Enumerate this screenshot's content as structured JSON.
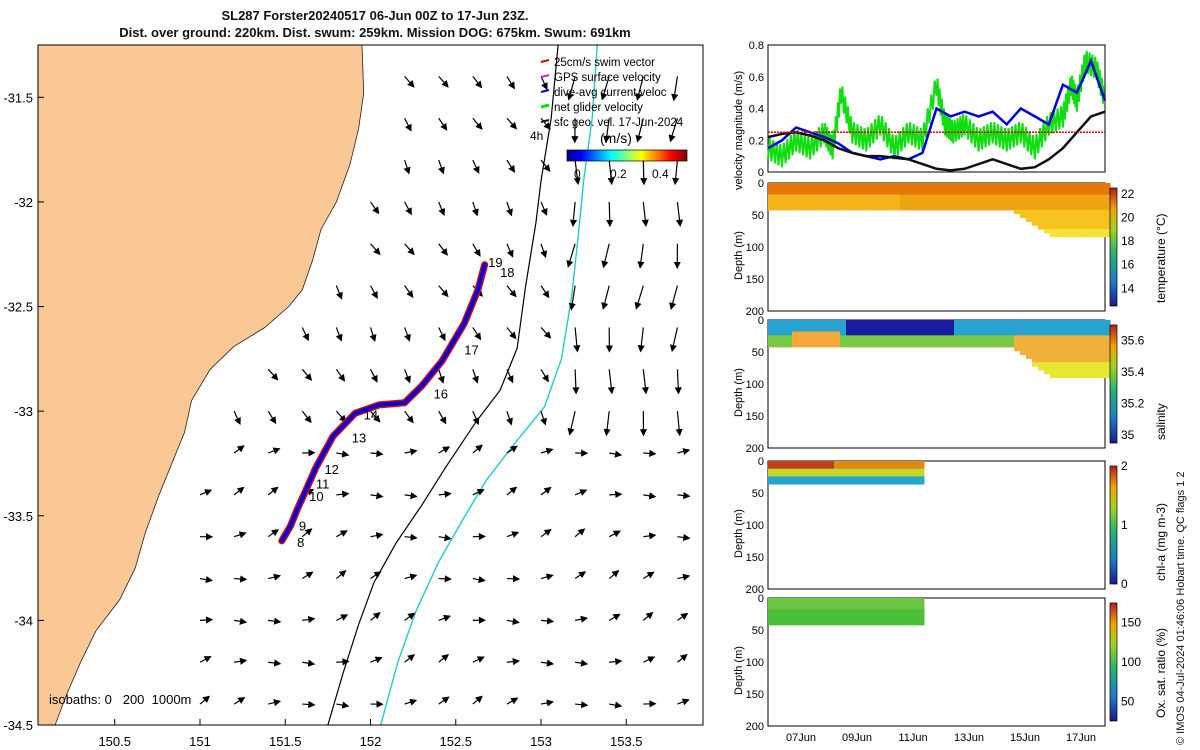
{
  "header": {
    "title_line1": "SL287 Forster20240517 06-Jun 00Z to 17-Jun 23Z.",
    "title_line2": "Dist. over ground: 220km. Dist. swum: 259km. Mission DOG: 675km. Swum: 691km"
  },
  "side_note": "© IMOS 04-Jul-2024 01:46:06 Hobart time. QC flags 1 2",
  "colors": {
    "land": "#f9c894",
    "swim": "#dd0000",
    "gps": "#cc22cc",
    "dive": "#0000dd",
    "net": "#11dd11",
    "sfc": "#111111",
    "isobath_200": "#000000",
    "isobath_1000": "#22cccc"
  },
  "chart_data": [
    {
      "type": "map",
      "x": {
        "ticks": [
          150.5,
          151,
          151.5,
          152,
          152.5,
          153,
          153.5
        ],
        "range": [
          150.05,
          153.95
        ]
      },
      "y": {
        "ticks": [
          -31.5,
          -32,
          -32.5,
          -33,
          -33.5,
          -34,
          -34.5
        ],
        "range": [
          -34.5,
          -31.25
        ]
      },
      "legend": {
        "placement": "top-right",
        "entries": [
          "25cm/s swim vector",
          "GPS surface velocity",
          "dive-avg current veloc",
          "net glider velocity",
          "sfc geo. vel. 17-Jun-2024"
        ]
      },
      "colorbar": {
        "label": "(m/s)",
        "ticks": [
          "0",
          "0.2",
          "0.4"
        ],
        "range": [
          -0.05,
          0.5
        ]
      },
      "annotations": {
        "time_marker": "4h",
        "isobath_label": "isobaths: 0   200  1000m"
      },
      "track_labels": [
        {
          "label": "8",
          "lon": 151.57,
          "lat": -33.65
        },
        {
          "label": "9",
          "lon": 151.58,
          "lat": -33.57
        },
        {
          "label": "10",
          "lon": 151.64,
          "lat": -33.43
        },
        {
          "label": "11",
          "lon": 151.68,
          "lat": -33.37
        },
        {
          "label": "12",
          "lon": 151.73,
          "lat": -33.3
        },
        {
          "label": "13",
          "lon": 151.89,
          "lat": -33.15
        },
        {
          "label": "14",
          "lon": 151.96,
          "lat": -33.04
        },
        {
          "label": "16",
          "lon": 152.37,
          "lat": -32.94
        },
        {
          "label": "17",
          "lon": 152.55,
          "lat": -32.73
        },
        {
          "label": "18",
          "lon": 152.76,
          "lat": -32.36
        },
        {
          "label": "19",
          "lon": 152.69,
          "lat": -32.31
        }
      ],
      "glider_track": [
        [
          151.48,
          -33.62
        ],
        [
          151.53,
          -33.55
        ],
        [
          151.57,
          -33.47
        ],
        [
          151.62,
          -33.38
        ],
        [
          151.68,
          -33.27
        ],
        [
          151.78,
          -33.12
        ],
        [
          151.91,
          -33.01
        ],
        [
          152.05,
          -32.97
        ],
        [
          152.2,
          -32.96
        ],
        [
          152.3,
          -32.88
        ],
        [
          152.42,
          -32.76
        ],
        [
          152.55,
          -32.58
        ],
        [
          152.63,
          -32.42
        ],
        [
          152.67,
          -32.3
        ]
      ],
      "coastline": [
        [
          151.95,
          -31.25
        ],
        [
          151.96,
          -31.48
        ],
        [
          151.93,
          -31.65
        ],
        [
          151.88,
          -31.82
        ],
        [
          151.8,
          -32.0
        ],
        [
          151.71,
          -32.13
        ],
        [
          151.66,
          -32.28
        ],
        [
          151.6,
          -32.42
        ],
        [
          151.52,
          -32.5
        ],
        [
          151.38,
          -32.6
        ],
        [
          151.2,
          -32.69
        ],
        [
          151.06,
          -32.8
        ],
        [
          150.95,
          -32.95
        ],
        [
          150.91,
          -33.1
        ],
        [
          150.82,
          -33.28
        ],
        [
          150.76,
          -33.4
        ],
        [
          150.68,
          -33.58
        ],
        [
          150.62,
          -33.75
        ],
        [
          150.53,
          -33.9
        ],
        [
          150.39,
          -34.05
        ],
        [
          150.3,
          -34.2
        ],
        [
          150.22,
          -34.35
        ],
        [
          150.15,
          -34.5
        ]
      ],
      "isobath_200": [
        [
          153.1,
          -31.25
        ],
        [
          153.06,
          -31.6
        ],
        [
          153.0,
          -31.9
        ],
        [
          152.97,
          -32.1
        ],
        [
          152.91,
          -32.4
        ],
        [
          152.86,
          -32.7
        ],
        [
          152.76,
          -32.9
        ],
        [
          152.62,
          -33.05
        ],
        [
          152.44,
          -33.27
        ],
        [
          152.3,
          -33.45
        ],
        [
          152.15,
          -33.63
        ],
        [
          152.02,
          -33.82
        ],
        [
          151.93,
          -34.02
        ],
        [
          151.84,
          -34.25
        ],
        [
          151.75,
          -34.5
        ]
      ],
      "isobath_1000": [
        [
          153.33,
          -31.25
        ],
        [
          153.3,
          -31.6
        ],
        [
          153.25,
          -31.9
        ],
        [
          153.22,
          -32.15
        ],
        [
          153.18,
          -32.45
        ],
        [
          153.12,
          -32.75
        ],
        [
          153.02,
          -32.98
        ],
        [
          152.85,
          -33.15
        ],
        [
          152.68,
          -33.33
        ],
        [
          152.54,
          -33.52
        ],
        [
          152.4,
          -33.72
        ],
        [
          152.27,
          -33.95
        ],
        [
          152.16,
          -34.2
        ],
        [
          152.06,
          -34.5
        ]
      ],
      "velocity_field_grid": {
        "lon_start": 151.0,
        "lon_step": 0.2,
        "lat_start": -34.5,
        "lat_step": 0.2
      }
    },
    {
      "type": "line",
      "ylabel": "velocity magnitude (m/s)",
      "ylim": [
        0,
        0.8
      ],
      "yticks": [
        0,
        0.2,
        0.4,
        0.6,
        0.8
      ],
      "series": [
        {
          "color": "#11dd11",
          "x": [
            0,
            0.5,
            1,
            1.5,
            2,
            2.3,
            2.6,
            3,
            3.5,
            4,
            4.5,
            5,
            5.5,
            6,
            6.3,
            6.6,
            7,
            7.5,
            8,
            8.5,
            9,
            9.5,
            10,
            10.5,
            10.8,
            11,
            11.3,
            11.7,
            12
          ],
          "values": [
            0.15,
            0.1,
            0.2,
            0.15,
            0.25,
            0.15,
            0.5,
            0.25,
            0.2,
            0.3,
            0.15,
            0.25,
            0.2,
            0.55,
            0.3,
            0.25,
            0.3,
            0.2,
            0.25,
            0.2,
            0.25,
            0.15,
            0.3,
            0.35,
            0.55,
            0.45,
            0.7,
            0.65,
            0.45
          ]
        },
        {
          "color": "#0000dd",
          "x": [
            0,
            0.5,
            1,
            1.5,
            2,
            2.5,
            3,
            3.5,
            4,
            4.5,
            5,
            5.5,
            6,
            6.5,
            7,
            7.5,
            8,
            8.5,
            9,
            9.5,
            10,
            10.5,
            11,
            11.5,
            12
          ],
          "values": [
            0.15,
            0.2,
            0.28,
            0.25,
            0.22,
            0.18,
            0.12,
            0.1,
            0.08,
            0.1,
            0.08,
            0.12,
            0.4,
            0.35,
            0.38,
            0.35,
            0.38,
            0.3,
            0.4,
            0.35,
            0.3,
            0.55,
            0.5,
            0.7,
            0.45
          ]
        },
        {
          "color": "#111111",
          "x": [
            0,
            0.5,
            1,
            1.5,
            2,
            2.5,
            3,
            3.5,
            4,
            4.5,
            5,
            5.5,
            6,
            6.5,
            7,
            7.5,
            8,
            8.5,
            9,
            9.5,
            10,
            10.5,
            11,
            11.5,
            12
          ],
          "values": [
            0.22,
            0.24,
            0.25,
            0.23,
            0.2,
            0.15,
            0.12,
            0.1,
            0.1,
            0.09,
            0.08,
            0.05,
            0.02,
            0.01,
            0.02,
            0.05,
            0.08,
            0.05,
            0.02,
            0.03,
            0.08,
            0.15,
            0.25,
            0.35,
            0.38
          ]
        },
        {
          "color": "#dd0000",
          "x": [
            0,
            12
          ],
          "values": [
            0.25,
            0.25
          ]
        }
      ]
    },
    {
      "type": "heatmap",
      "ylabel": "Depth (m)",
      "yticks": [
        0,
        50,
        100,
        150,
        200
      ],
      "colorbar_label": "temperature (°C)",
      "colorbar_ticks": [
        14,
        16,
        18,
        20,
        22
      ],
      "clim": [
        12.5,
        22.5
      ]
    },
    {
      "type": "heatmap",
      "ylabel": "Depth (m)",
      "yticks": [
        0,
        50,
        100,
        150,
        200
      ],
      "colorbar_label": "salinity",
      "colorbar_ticks": [
        35,
        35.2,
        35.4,
        35.6
      ],
      "clim": [
        34.95,
        35.7
      ]
    },
    {
      "type": "heatmap",
      "ylabel": "Depth (m)",
      "yticks": [
        0,
        50,
        100,
        150,
        200
      ],
      "colorbar_label": "chl-a (mg m-3)",
      "colorbar_ticks": [
        0,
        1,
        2
      ],
      "clim": [
        0,
        2
      ]
    },
    {
      "type": "heatmap",
      "ylabel": "Depth (m)",
      "yticks": [
        0,
        50,
        100,
        150,
        200
      ],
      "colorbar_label": "Ox. sat. ratio (%)",
      "colorbar_ticks": [
        50,
        100,
        150
      ],
      "clim": [
        25,
        175
      ],
      "xticks": [
        "07Jun",
        "09Jun",
        "11Jun",
        "13Jun",
        "15Jun",
        "17Jun"
      ]
    }
  ]
}
